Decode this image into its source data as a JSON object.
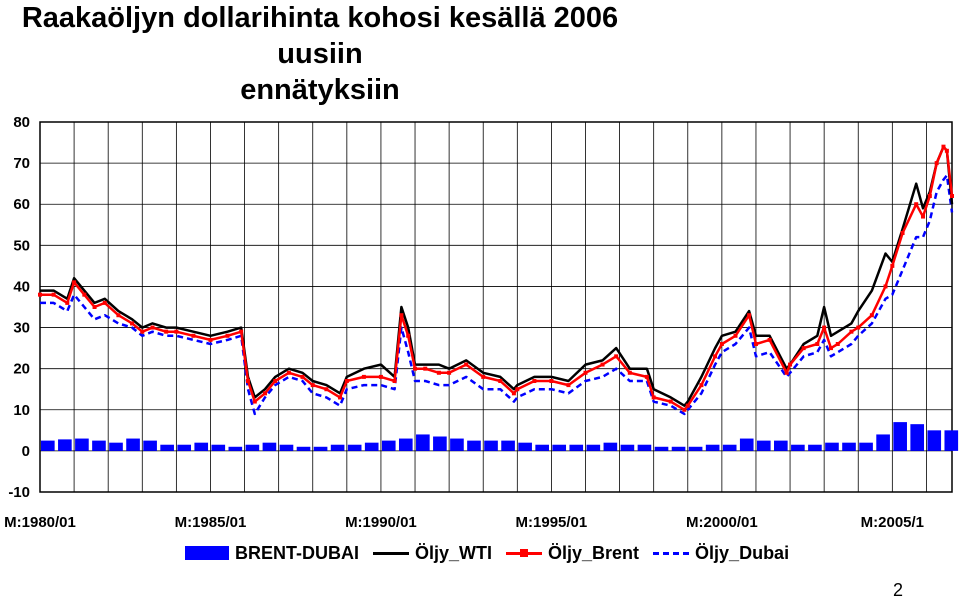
{
  "title_line1": "Raakaöljyn dollarihinta kohosi kesällä 2006 uusiin",
  "title_line2": "ennätyksiin",
  "page_number": "2",
  "colors": {
    "brent_dubai": "#0000ff",
    "wti": "#000000",
    "brent": "#ff0000",
    "dubai": "#0000ff"
  },
  "chart_data": {
    "type": "line",
    "y_ticks": [
      "80",
      "70",
      "60",
      "50",
      "40",
      "30",
      "20",
      "10",
      "0",
      "-10"
    ],
    "ylim": [
      -10,
      80
    ],
    "x_range": [
      1980.0,
      2006.75
    ],
    "x_tick_labels": [
      "M:1980/01",
      "M:1985/01",
      "M:1990/01",
      "M:1995/01",
      "M:2000/01",
      "M:2005/1"
    ],
    "x_tick_years": [
      1980,
      1985,
      1990,
      1995,
      2000,
      2005
    ],
    "grid": true,
    "legend_position": "bottom",
    "legend": [
      "BRENT-DUBAI",
      "Öljy_WTI",
      "Öljy_Brent",
      "Öljy_Dubai"
    ],
    "series": [
      {
        "name": "Öljy_Brent",
        "x": [
          1980.0,
          1980.4,
          1980.8,
          1981.0,
          1981.3,
          1981.6,
          1981.9,
          1982.3,
          1982.7,
          1983.0,
          1983.3,
          1983.7,
          1984.0,
          1984.5,
          1985.0,
          1985.5,
          1985.9,
          1986.1,
          1986.3,
          1986.6,
          1986.9,
          1987.3,
          1987.7,
          1988.0,
          1988.4,
          1988.8,
          1989.0,
          1989.5,
          1990.0,
          1990.4,
          1990.6,
          1990.8,
          1991.0,
          1991.3,
          1991.7,
          1992.0,
          1992.5,
          1993.0,
          1993.5,
          1993.9,
          1994.0,
          1994.5,
          1995.0,
          1995.5,
          1996.0,
          1996.5,
          1996.9,
          1997.3,
          1997.8,
          1998.0,
          1998.5,
          1998.9,
          1999.0,
          1999.4,
          1999.8,
          2000.0,
          2000.4,
          2000.8,
          2001.0,
          2001.4,
          2001.9,
          2002.0,
          2002.4,
          2002.8,
          2003.0,
          2003.2,
          2003.4,
          2003.8,
          2004.0,
          2004.4,
          2004.8,
          2005.0,
          2005.3,
          2005.7,
          2005.9,
          2006.1,
          2006.3,
          2006.5,
          2006.6,
          2006.75
        ],
        "values": [
          38,
          38,
          36,
          41,
          38,
          35,
          36,
          33,
          31,
          29,
          30,
          29,
          29,
          28,
          27,
          28,
          29,
          17,
          12,
          14,
          17,
          19,
          18,
          16,
          15,
          13,
          17,
          18,
          18,
          17,
          33,
          28,
          20,
          20,
          19,
          19,
          21,
          18,
          17,
          14,
          15,
          17,
          17,
          16,
          19,
          21,
          23,
          19,
          18,
          13,
          12,
          10,
          11,
          16,
          23,
          26,
          28,
          33,
          26,
          27,
          19,
          21,
          25,
          26,
          30,
          25,
          26,
          29,
          30,
          33,
          40,
          45,
          53,
          60,
          57,
          62,
          70,
          74,
          73,
          62
        ]
      },
      {
        "name": "Öljy_WTI",
        "x": [
          1980.0,
          1980.4,
          1980.8,
          1981.0,
          1981.3,
          1981.6,
          1981.9,
          1982.3,
          1982.7,
          1983.0,
          1983.3,
          1983.7,
          1984.0,
          1984.5,
          1985.0,
          1985.5,
          1985.9,
          1986.1,
          1986.3,
          1986.6,
          1986.9,
          1987.3,
          1987.7,
          1988.0,
          1988.4,
          1988.8,
          1989.0,
          1989.5,
          1990.0,
          1990.4,
          1990.6,
          1990.8,
          1991.0,
          1991.3,
          1991.7,
          1992.0,
          1992.5,
          1993.0,
          1993.5,
          1993.9,
          1994.0,
          1994.5,
          1995.0,
          1995.5,
          1996.0,
          1996.5,
          1996.9,
          1997.3,
          1997.8,
          1998.0,
          1998.5,
          1998.9,
          1999.0,
          1999.4,
          1999.8,
          2000.0,
          2000.4,
          2000.8,
          2001.0,
          2001.4,
          2001.9,
          2002.0,
          2002.4,
          2002.8,
          2003.0,
          2003.2,
          2003.4,
          2003.8,
          2004.0,
          2004.4,
          2004.8,
          2005.0,
          2005.3,
          2005.7,
          2005.9,
          2006.1,
          2006.3,
          2006.5,
          2006.6,
          2006.75
        ],
        "values": [
          39,
          39,
          37,
          42,
          39,
          36,
          37,
          34,
          32,
          30,
          31,
          30,
          30,
          29,
          28,
          29,
          30,
          18,
          13,
          15,
          18,
          20,
          19,
          17,
          16,
          14,
          18,
          20,
          21,
          18,
          35,
          30,
          21,
          21,
          21,
          20,
          22,
          19,
          18,
          15,
          16,
          18,
          18,
          17,
          21,
          22,
          25,
          20,
          20,
          15,
          13,
          11,
          12,
          18,
          25,
          28,
          29,
          34,
          28,
          28,
          20,
          21,
          26,
          28,
          35,
          28,
          29,
          31,
          34,
          39,
          48,
          46,
          54,
          65,
          59,
          63,
          70,
          74,
          73,
          60
        ]
      },
      {
        "name": "Öljy_Dubai",
        "x": [
          1980.0,
          1980.4,
          1980.8,
          1981.0,
          1981.3,
          1981.6,
          1981.9,
          1982.3,
          1982.7,
          1983.0,
          1983.3,
          1983.7,
          1984.0,
          1984.5,
          1985.0,
          1985.5,
          1985.9,
          1986.1,
          1986.3,
          1986.6,
          1986.9,
          1987.3,
          1987.7,
          1988.0,
          1988.4,
          1988.8,
          1989.0,
          1989.5,
          1990.0,
          1990.4,
          1990.6,
          1990.8,
          1991.0,
          1991.3,
          1991.7,
          1992.0,
          1992.5,
          1993.0,
          1993.5,
          1993.9,
          1994.0,
          1994.5,
          1995.0,
          1995.5,
          1996.0,
          1996.5,
          1996.9,
          1997.3,
          1997.8,
          1998.0,
          1998.5,
          1998.9,
          1999.0,
          1999.4,
          1999.8,
          2000.0,
          2000.4,
          2000.8,
          2001.0,
          2001.4,
          2001.9,
          2002.0,
          2002.4,
          2002.8,
          2003.0,
          2003.2,
          2003.4,
          2003.8,
          2004.0,
          2004.4,
          2004.8,
          2005.0,
          2005.3,
          2005.7,
          2005.9,
          2006.1,
          2006.3,
          2006.5,
          2006.6,
          2006.75
        ],
        "values": [
          36,
          36,
          34,
          38,
          35,
          32,
          33,
          31,
          30,
          28,
          29,
          28,
          28,
          27,
          26,
          27,
          28,
          15,
          9,
          13,
          16,
          18,
          17,
          14,
          13,
          11,
          15,
          16,
          16,
          15,
          30,
          24,
          17,
          17,
          16,
          16,
          18,
          15,
          15,
          12,
          13,
          15,
          15,
          14,
          17,
          18,
          20,
          17,
          17,
          12,
          11,
          9,
          10,
          14,
          21,
          24,
          26,
          30,
          23,
          24,
          18,
          19,
          23,
          24,
          27,
          23,
          24,
          26,
          28,
          31,
          37,
          38,
          44,
          52,
          52,
          56,
          63,
          66,
          67,
          58
        ]
      },
      {
        "name": "BRENT-DUBAI",
        "type": "bar",
        "x": [
          1980.0,
          1980.5,
          1981.0,
          1981.5,
          1982.0,
          1982.5,
          1983.0,
          1983.5,
          1984.0,
          1984.5,
          1985.0,
          1985.5,
          1986.0,
          1986.5,
          1987.0,
          1987.5,
          1988.0,
          1988.5,
          1989.0,
          1989.5,
          1990.0,
          1990.5,
          1991.0,
          1991.5,
          1992.0,
          1992.5,
          1993.0,
          1993.5,
          1994.0,
          1994.5,
          1995.0,
          1995.5,
          1996.0,
          1996.5,
          1997.0,
          1997.5,
          1998.0,
          1998.5,
          1999.0,
          1999.5,
          2000.0,
          2000.5,
          2001.0,
          2001.5,
          2002.0,
          2002.5,
          2003.0,
          2003.5,
          2004.0,
          2004.5,
          2005.0,
          2005.5,
          2006.0,
          2006.5
        ],
        "values": [
          2.5,
          2.8,
          3.0,
          2.5,
          2.0,
          3.0,
          2.5,
          1.5,
          1.5,
          2.0,
          1.5,
          1.0,
          1.5,
          2.0,
          1.5,
          1.0,
          1.0,
          1.5,
          1.5,
          2.0,
          2.5,
          3.0,
          4.0,
          3.5,
          3.0,
          2.5,
          2.5,
          2.5,
          2.0,
          1.5,
          1.5,
          1.5,
          1.5,
          2.0,
          1.5,
          1.5,
          1.0,
          1.0,
          1.0,
          1.5,
          1.5,
          3.0,
          2.5,
          2.5,
          1.5,
          1.5,
          2.0,
          2.0,
          2.0,
          4.0,
          7.0,
          6.5,
          5.0,
          5.0
        ]
      }
    ]
  }
}
